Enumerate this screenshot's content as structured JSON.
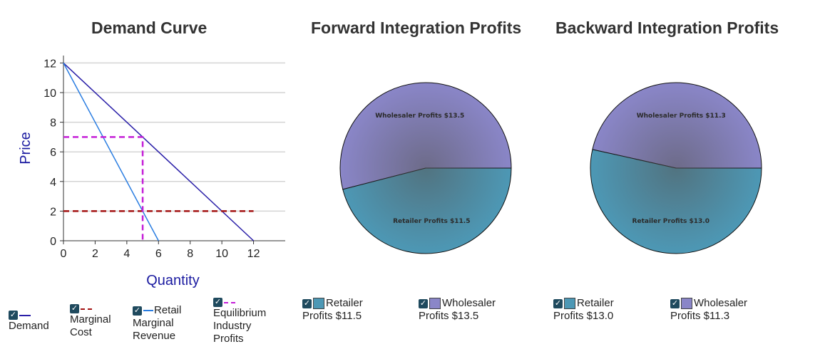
{
  "titles": {
    "demand": "Demand Curve",
    "forward": "Forward Integration Profits",
    "backward": "Backward Integration Profits"
  },
  "colors": {
    "demand": "#2a1fa8",
    "marginal_revenue": "#2a7de1",
    "marginal_cost": "#a31212",
    "equilibrium": "#c41ed8",
    "retailer": "#4d98b5",
    "wholesaler": "#8a86c8",
    "check": "#1f4a5e"
  },
  "chart_data": [
    {
      "type": "line",
      "title": "Demand Curve",
      "xlabel": "Quantity",
      "ylabel": "Price",
      "xlim": [
        0,
        14
      ],
      "ylim": [
        0,
        12.5
      ],
      "xticks": [
        "0",
        "2",
        "4",
        "6",
        "8",
        "10",
        "12"
      ],
      "yticks": [
        "0",
        "2",
        "4",
        "6",
        "8",
        "10",
        "12"
      ],
      "grid": true,
      "series": [
        {
          "name": "Demand",
          "style": "solid",
          "color": "#2a1fa8",
          "points": [
            [
              0,
              12
            ],
            [
              12,
              0
            ]
          ]
        },
        {
          "name": "Retail Marginal Revenue",
          "style": "solid",
          "color": "#2a7de1",
          "points": [
            [
              0,
              12
            ],
            [
              6,
              0
            ]
          ]
        },
        {
          "name": "Marginal Cost",
          "style": "dashed",
          "color": "#a31212",
          "points": [
            [
              0,
              2
            ],
            [
              12,
              2
            ]
          ]
        },
        {
          "name": "Equilibrium Industry Profits",
          "style": "dashed",
          "color": "#c41ed8",
          "points": [
            [
              0,
              7
            ],
            [
              5,
              7
            ],
            [
              5,
              0
            ]
          ]
        }
      ]
    },
    {
      "type": "pie",
      "title": "Forward Integration Profits",
      "slices": [
        {
          "label": "Wholesaler Profits $13.5",
          "value": 13.5,
          "color": "#8a86c8"
        },
        {
          "label": "Retailer Profits $11.5",
          "value": 11.5,
          "color": "#4d98b5"
        }
      ]
    },
    {
      "type": "pie",
      "title": "Backward Integration Profits",
      "slices": [
        {
          "label": "Wholesaler Profits $11.3",
          "value": 11.3,
          "color": "#8a86c8"
        },
        {
          "label": "Retailer Profits $13.0",
          "value": 13.0,
          "color": "#4d98b5"
        }
      ]
    }
  ],
  "legend_demand": [
    {
      "label": "Demand",
      "check": "✓"
    },
    {
      "label_top": "",
      "label": "Marginal Cost",
      "check": "✓"
    },
    {
      "label_top": "Retail",
      "label": "Marginal Revenue",
      "check": "✓"
    },
    {
      "label_top": "",
      "label": "Equilibrium Industry Profits",
      "check": "✓"
    }
  ],
  "legend_forward": [
    {
      "label_top": "Retailer",
      "label": "Profits $11.5",
      "check": "✓"
    },
    {
      "label_top": "Wholesaler",
      "label": "Profits $13.5",
      "check": "✓"
    }
  ],
  "legend_backward": [
    {
      "label_top": "Retailer",
      "label": "Profits $13.0",
      "check": "✓"
    },
    {
      "label_top": "Wholesaler",
      "label": "Profits $11.3",
      "check": "✓"
    }
  ]
}
